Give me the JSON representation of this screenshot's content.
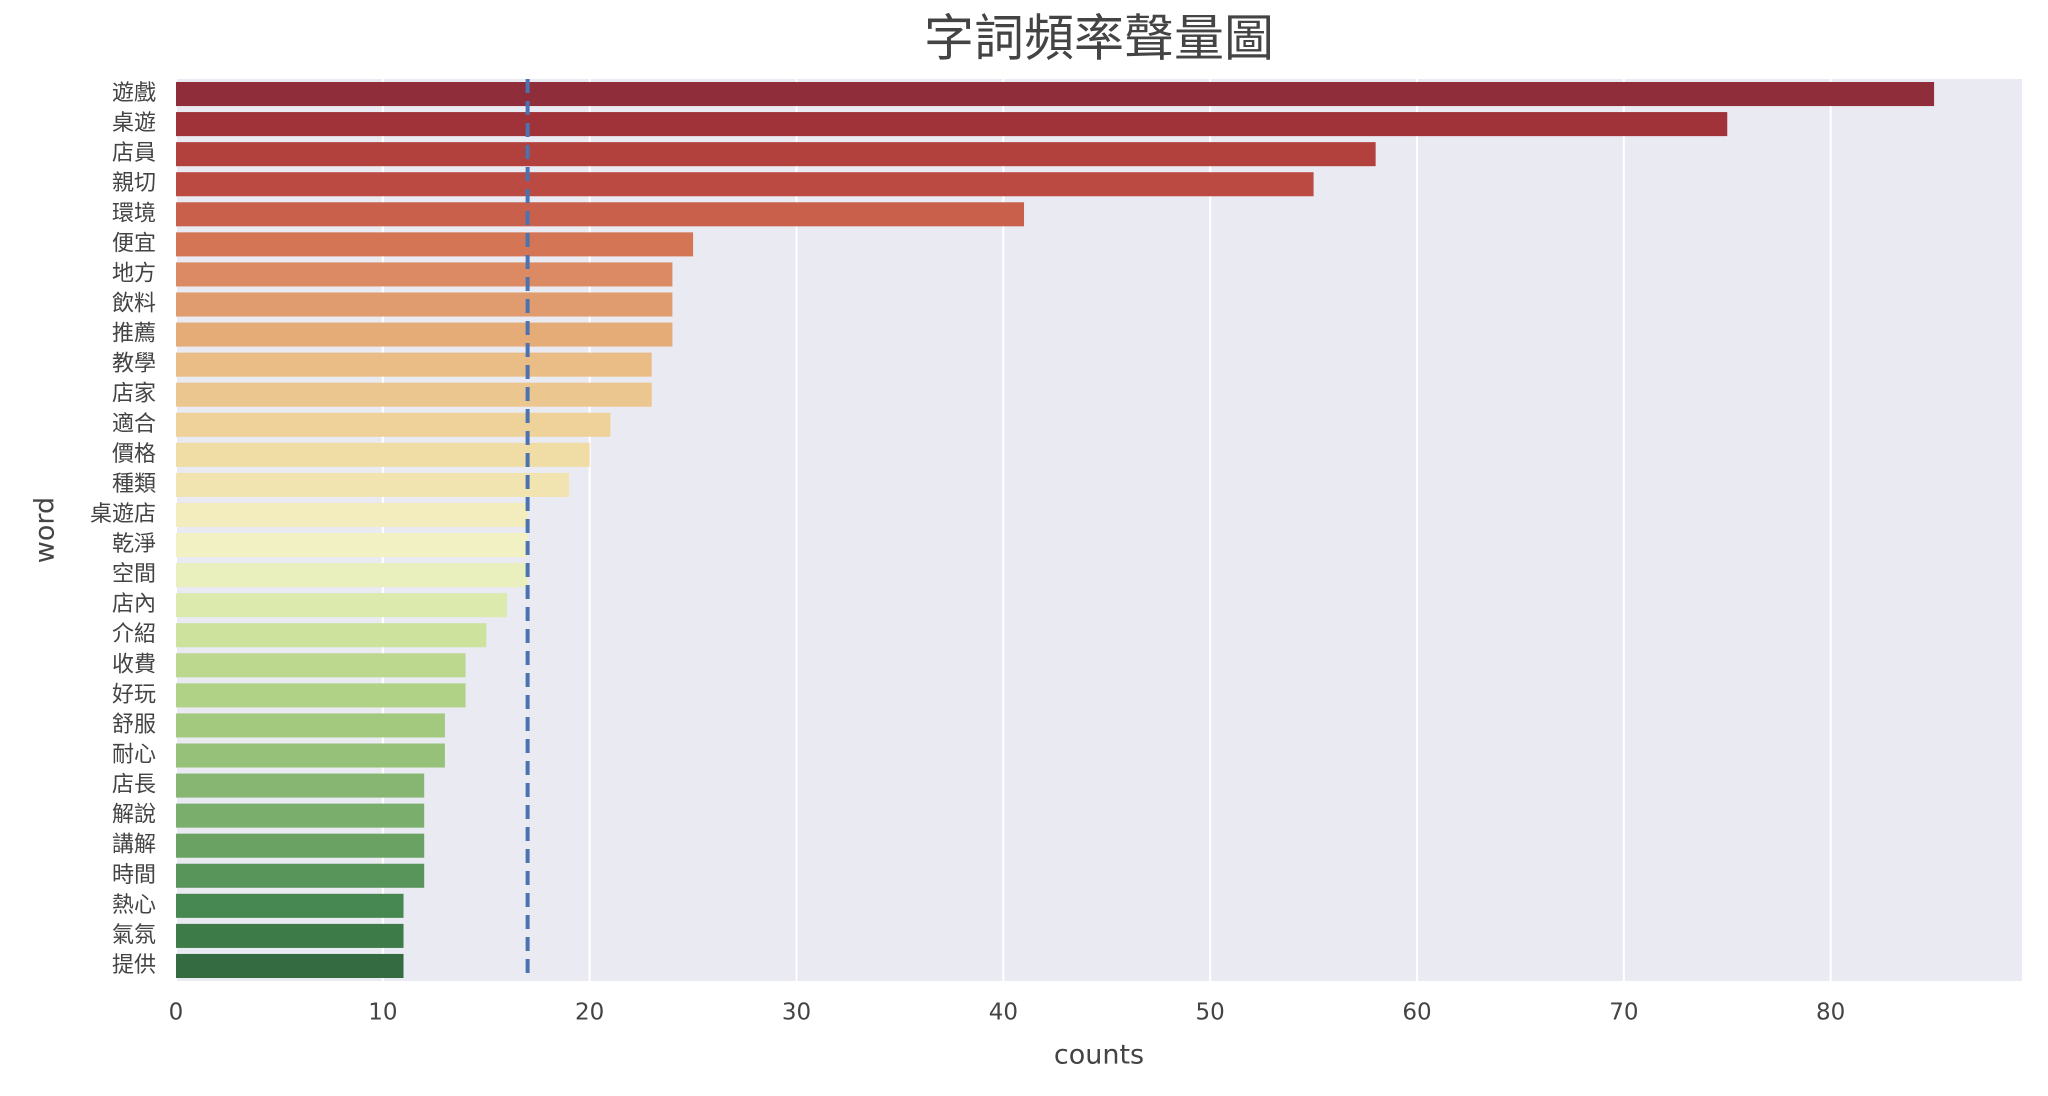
{
  "chart_data": {
    "type": "hbar",
    "title": "字詞頻率聲量圖",
    "x_label": "counts",
    "y_label": "word",
    "categories": [
      "遊戲",
      "桌遊",
      "店員",
      "親切",
      "環境",
      "便宜",
      "地方",
      "飲料",
      "推薦",
      "教學",
      "店家",
      "適合",
      "價格",
      "種類",
      "桌遊店",
      "乾淨",
      "空間",
      "店內",
      "介紹",
      "收費",
      "好玩",
      "舒服",
      "耐心",
      "店長",
      "解說",
      "講解",
      "時間",
      "熱心",
      "氣氛",
      "提供"
    ],
    "values": [
      85,
      75,
      58,
      55,
      41,
      25,
      24,
      24,
      24,
      23,
      23,
      21,
      20,
      19,
      17,
      17,
      17,
      16,
      15,
      14,
      14,
      13,
      13,
      12,
      12,
      12,
      12,
      11,
      11,
      11
    ],
    "colors": [
      "#8f2d3a",
      "#a0323a",
      "#b2403d",
      "#bb4a42",
      "#c9604c",
      "#d47656",
      "#db8a63",
      "#e09c6e",
      "#e5ac78",
      "#e9bd85",
      "#ecc68f",
      "#efd29a",
      "#f0dca5",
      "#f1e4b0",
      "#f3ecbd",
      "#f2f1c3",
      "#e9f0bd",
      "#dcebad",
      "#cde29d",
      "#bcd88f",
      "#b0d286",
      "#a2c97e",
      "#96c179",
      "#87b672",
      "#7aae6d",
      "#69a263",
      "#58955b",
      "#478751",
      "#3d7b48",
      "#346b40"
    ],
    "reference_line": 17,
    "reference_color": "#4c72b0",
    "xlim": [
      0,
      89.25
    ],
    "xticks": [
      0,
      10,
      20,
      30,
      40,
      50,
      60,
      70,
      80
    ],
    "grid": true
  }
}
